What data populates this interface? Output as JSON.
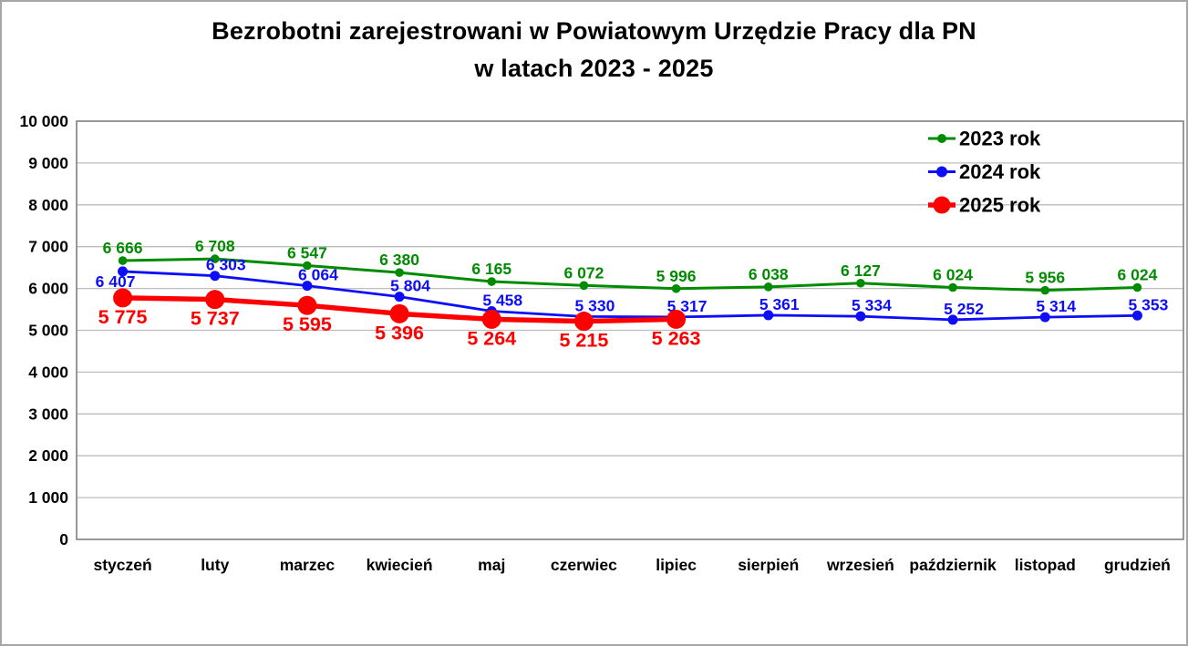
{
  "chart_data": {
    "type": "line",
    "title": "Bezrobotni zarejestrowani w Powiatowym Urzędzie Pracy dla PN",
    "title_line2": "w latach 2023 - 2025",
    "categories": [
      "styczeń",
      "luty",
      "marzec",
      "kwiecień",
      "maj",
      "czerwiec",
      "lipiec",
      "sierpień",
      "wrzesień",
      "październik",
      "listopad",
      "grudzień"
    ],
    "series": [
      {
        "name": "2023 rok",
        "color": "#008B00",
        "values": [
          6666,
          6708,
          6547,
          6380,
          6165,
          6072,
          5996,
          6038,
          6127,
          6024,
          5956,
          6024
        ]
      },
      {
        "name": "2024 rok",
        "color": "#0D0DFA",
        "values": [
          6407,
          6303,
          6064,
          5804,
          5458,
          5330,
          5317,
          5361,
          5334,
          5252,
          5314,
          5353
        ]
      },
      {
        "name": "2025 rok",
        "color": "#FF0000",
        "values": [
          5775,
          5737,
          5595,
          5396,
          5264,
          5215,
          5263
        ]
      }
    ],
    "ylim": [
      0,
      10000
    ],
    "ytick_step": 1000,
    "ytick_labels": [
      "0",
      "1 000",
      "2 000",
      "3 000",
      "4 000",
      "5 000",
      "6 000",
      "7 000",
      "8 000",
      "9 000",
      "10 000"
    ],
    "grid": true,
    "legend_position": "top-right",
    "data_labels_shown": true,
    "colors": {
      "grid_line": "#bdbdbd",
      "plot_frame": "#7f7f7f",
      "axis_text": "#000000",
      "legend_text": "#000000"
    }
  }
}
